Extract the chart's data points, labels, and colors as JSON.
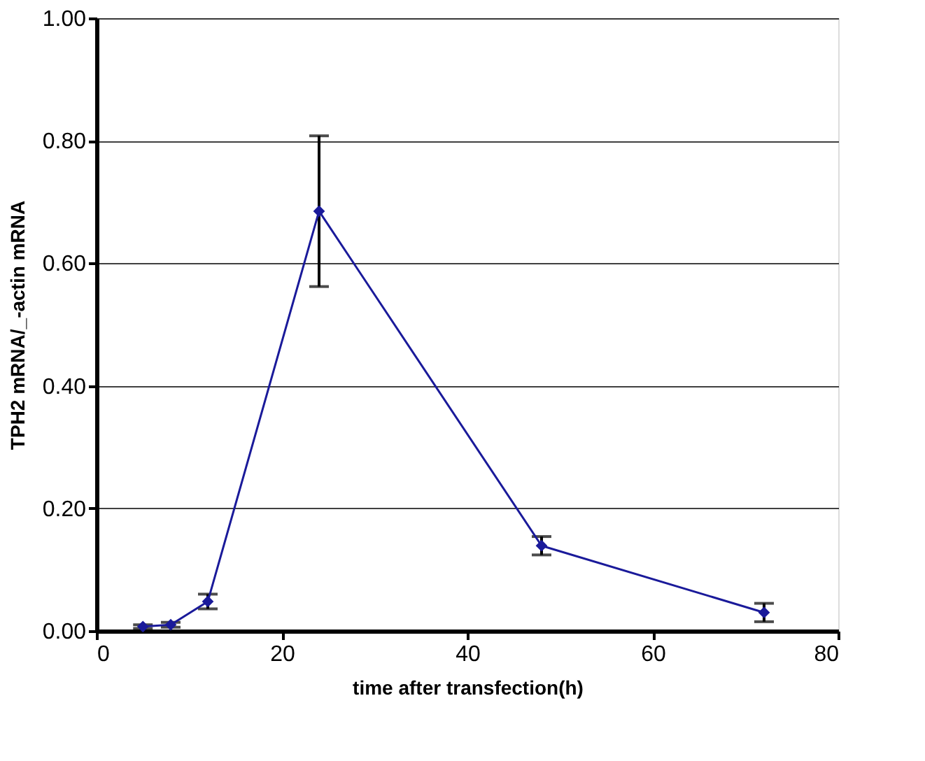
{
  "chart_data": {
    "type": "line",
    "xlabel": "time after transfection(h)",
    "ylabel": "TPH2 mRNA/_-actin mRNA",
    "x": [
      5,
      8,
      12,
      24,
      48,
      72
    ],
    "series": [
      {
        "color": "#1a1a9a",
        "values": [
          0.007,
          0.01,
          0.048,
          0.685,
          0.139,
          0.03
        ],
        "errors": [
          0.003,
          0.004,
          0.012,
          0.123,
          0.015,
          0.015
        ]
      }
    ],
    "xlim": [
      0,
      80
    ],
    "xticks": [
      0,
      20,
      40,
      60,
      80
    ],
    "ylim": [
      0,
      1
    ],
    "yticks": [
      {
        "value": 0,
        "label": "0.00"
      },
      {
        "value": 0.2,
        "label": "0.20"
      },
      {
        "value": 0.4,
        "label": "0.40"
      },
      {
        "value": 0.6,
        "label": "0.60"
      },
      {
        "value": 0.8,
        "label": "0.80"
      },
      {
        "value": 1,
        "label": "1.00"
      }
    ],
    "grid": "y",
    "marker": "diamond",
    "line_style": "solid"
  }
}
